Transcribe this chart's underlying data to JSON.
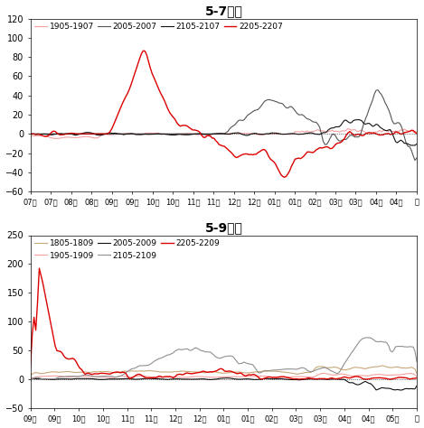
{
  "chart1": {
    "title": "5-7价差",
    "ylim": [
      -60,
      120
    ],
    "yticks": [
      -60,
      -40,
      -20,
      0,
      20,
      40,
      60,
      80,
      100,
      120
    ],
    "xtick_labels": [
      "07月",
      "07月",
      "08月",
      "08月",
      "09月",
      "09月",
      "10月",
      "10月",
      "11月",
      "11月",
      "12月",
      "12月",
      "01月",
      "01月",
      "02月",
      "03月",
      "03月",
      "04月",
      "04月",
      "月"
    ],
    "series": {
      "1905-1907": {
        "color": "#f4a0a0",
        "lw": 0.8
      },
      "2005-2007": {
        "color": "#555555",
        "lw": 0.8
      },
      "2105-2107": {
        "color": "#111111",
        "lw": 0.8
      },
      "2205-2207": {
        "color": "#dd0000",
        "lw": 1.0
      }
    }
  },
  "chart2": {
    "title": "5-9价差",
    "ylim": [
      -50,
      250
    ],
    "yticks": [
      -50,
      0,
      50,
      100,
      150,
      200,
      250
    ],
    "xtick_labels": [
      "09月",
      "09月",
      "10月",
      "10月",
      "11月",
      "11月",
      "12月",
      "12月",
      "01月",
      "01月",
      "02月",
      "03月",
      "03月",
      "04月",
      "04月",
      "05月",
      "月"
    ],
    "series": {
      "1805-1809": {
        "color": "#c8a878",
        "lw": 0.8
      },
      "1905-1909": {
        "color": "#f4a0a0",
        "lw": 0.8
      },
      "2005-2009": {
        "color": "#111111",
        "lw": 0.8
      },
      "2105-2109": {
        "color": "#909090",
        "lw": 0.8
      },
      "2205-2209": {
        "color": "#dd0000",
        "lw": 1.0
      }
    }
  }
}
